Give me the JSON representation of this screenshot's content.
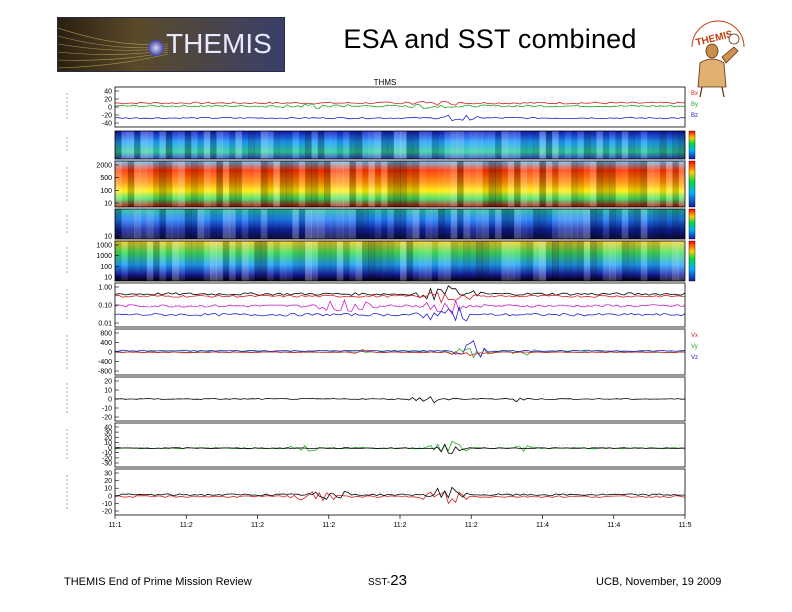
{
  "slide": {
    "title": "ESA and SST combined",
    "footer_left": "THEMIS End of Prime Mission Review",
    "footer_page_prefix": "SST-",
    "footer_page_num": "23",
    "footer_right": "UCB, November, 19 2009"
  },
  "logo_left": {
    "text": "THEMIS"
  },
  "logo_right": {
    "text": "THEMIS"
  },
  "colors": {
    "red": "#d42020",
    "green": "#22aa22",
    "blue": "#2222cc",
    "black": "#000000",
    "magenta": "#cc22cc",
    "colorbar_top": "#ff0000",
    "colorbar_bottom": "#1a1aa0"
  },
  "chart_data": {
    "type": "line",
    "stack_title": "THMS",
    "x_tick_labels": [
      "11:1",
      "11:2",
      "11:2",
      "11:2",
      "11:2",
      "11:2",
      "11:4",
      "11:4",
      "11:5"
    ],
    "panels": [
      {
        "id": "bfield",
        "type": "line",
        "yticks": [
          "40",
          "20",
          "0",
          "-20",
          "-40"
        ],
        "legend": [
          "Bx",
          "By",
          "Bz"
        ]
      },
      {
        "id": "ion-energy-sst",
        "type": "heatmap",
        "yticks": []
      },
      {
        "id": "ion-energy-esa",
        "type": "heatmap",
        "yticks": [
          "2000",
          "500",
          "100",
          "10"
        ]
      },
      {
        "id": "electron-energy-sst",
        "type": "heatmap",
        "yticks": [
          "10"
        ]
      },
      {
        "id": "electron-energy-esa",
        "type": "heatmap",
        "yticks": [
          "1000",
          "1000",
          "100",
          "10"
        ]
      },
      {
        "id": "density",
        "type": "line",
        "yticks": [
          "1.00",
          "0.10",
          "0.01"
        ]
      },
      {
        "id": "velocity",
        "type": "line",
        "yticks": [
          "800",
          "400",
          "0",
          "-400",
          "-800"
        ],
        "legend": [
          "Vx",
          "Vy",
          "Vz"
        ]
      },
      {
        "id": "ex",
        "type": "line",
        "yticks": [
          "20",
          "10",
          "0",
          "-10",
          "-20"
        ]
      },
      {
        "id": "ey",
        "type": "line",
        "yticks": [
          "40",
          "30",
          "20",
          "10",
          "0",
          "-10",
          "-20",
          "-30"
        ]
      },
      {
        "id": "ez",
        "type": "line",
        "yticks": [
          "30",
          "20",
          "10",
          "0",
          "-10",
          "-20"
        ]
      }
    ]
  }
}
